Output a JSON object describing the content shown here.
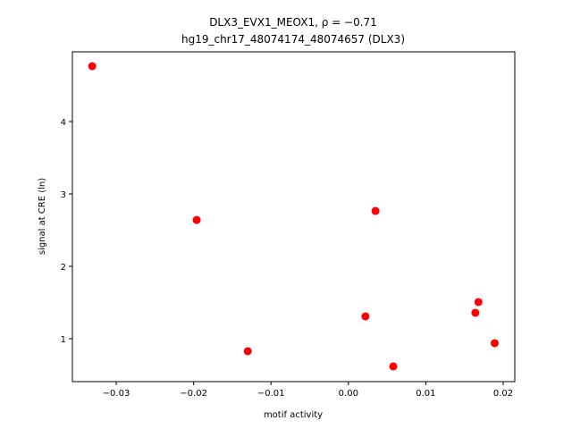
{
  "chart_data": {
    "type": "scatter",
    "title": "DLX3_EVX1_MEOX1, ρ = −0.71",
    "subtitle": "hg19_chr17_48074174_48074657 (DLX3)",
    "x_label": "motif activity",
    "y_label": "signal at CRE (ln)",
    "x": [
      -0.0331,
      -0.0196,
      -0.013,
      0.0022,
      0.0035,
      0.0058,
      0.0164,
      0.0168,
      0.0189
    ],
    "values": [
      4.765,
      2.64,
      0.827,
      1.309,
      2.765,
      0.617,
      1.358,
      1.506,
      0.938
    ],
    "color": "#ff0000",
    "xlim": [
      -0.03566,
      0.0215
    ],
    "ylim": [
      0.407,
      4.963
    ],
    "xticks": [
      {
        "value": -0.03,
        "label": "−0.03"
      },
      {
        "value": -0.02,
        "label": "−0.02"
      },
      {
        "value": -0.01,
        "label": "−0.01"
      },
      {
        "value": 0,
        "label": "0.00"
      },
      {
        "value": 0.01,
        "label": "0.01"
      },
      {
        "value": 0.02,
        "label": "0.02"
      }
    ],
    "yticks": [
      1,
      2,
      3,
      4
    ],
    "grid": false
  }
}
